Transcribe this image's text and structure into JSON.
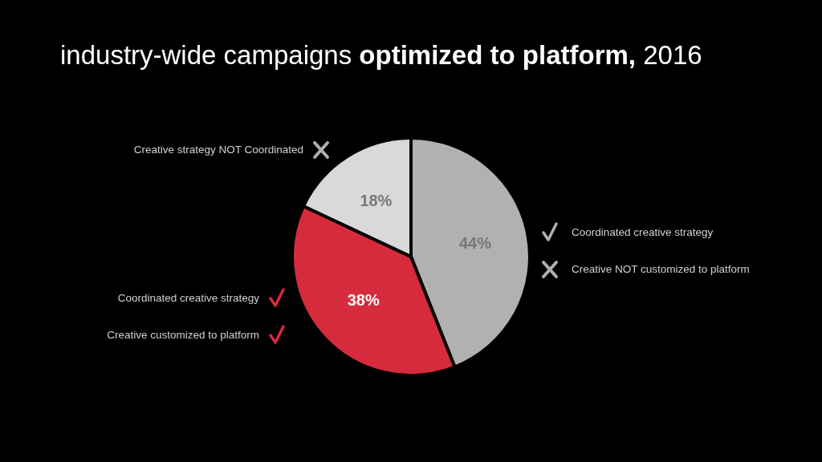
{
  "chart_data": {
    "type": "pie",
    "title": "industry-wide campaigns optimized to platform, 2016",
    "categories": [
      "Coordinated creative strategy\nCreative NOT customized to platform",
      "Coordinated creative strategy\nCreative customized to platform",
      "Creative strategy NOT Coordinated"
    ],
    "values": [
      44,
      38,
      18
    ],
    "colors": [
      "#b1b1b1",
      "#d62b3c",
      "#d9d9d9"
    ],
    "value_labels": [
      "44%",
      "38%",
      "18%"
    ]
  }
}
